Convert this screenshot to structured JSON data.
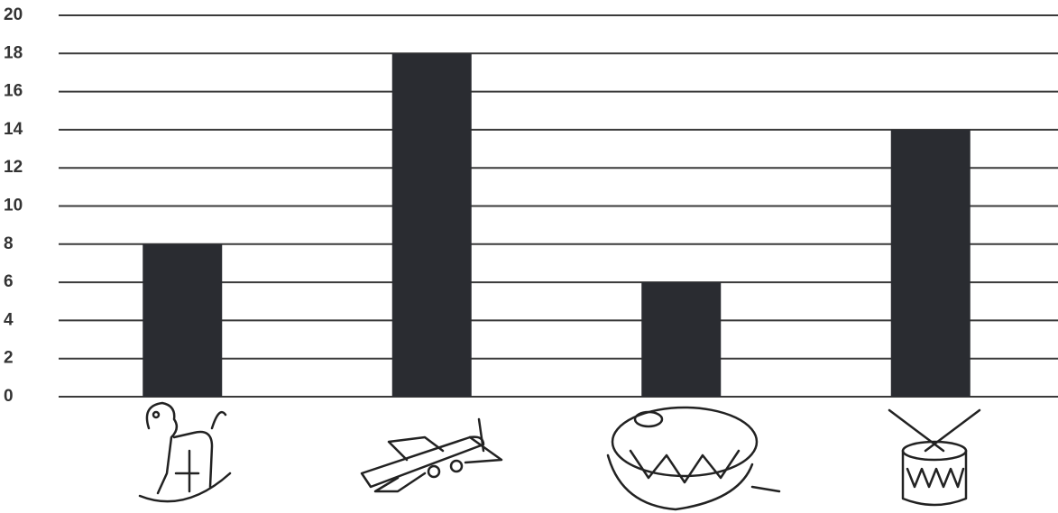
{
  "chart_data": {
    "type": "bar",
    "categories": [
      null,
      null,
      null,
      null
    ],
    "values": [
      8,
      18,
      6,
      14
    ],
    "color": "#2a2c31",
    "ylim": [
      0,
      20
    ],
    "yticks": [
      0,
      2,
      4,
      6,
      8,
      10,
      12,
      14,
      16,
      18,
      20
    ],
    "grid": true
  }
}
